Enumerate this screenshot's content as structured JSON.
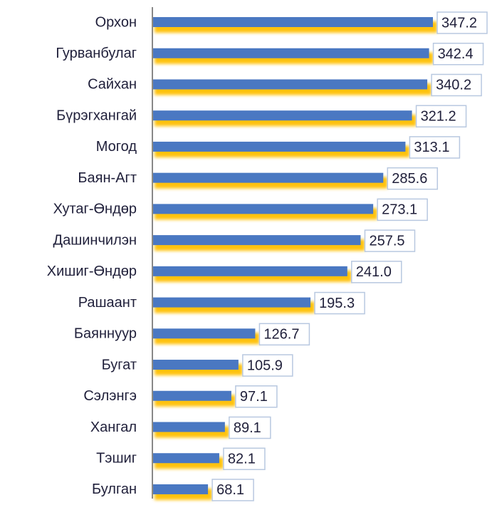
{
  "chart_data": {
    "type": "bar",
    "orientation": "horizontal",
    "categories": [
      "Орхон",
      "Гурванбулаг",
      "Сайхан",
      "Бүрэгхангай",
      "Могод",
      "Баян-Агт",
      "Хутаг-Өндөр",
      "Дашинчилэн",
      "Хишиг-Өндөр",
      "Рашаант",
      "Баяннуур",
      "Бугат",
      "Сэлэнгэ",
      "Хангал",
      "Тэшиг",
      "Булган"
    ],
    "values": [
      347.2,
      342.4,
      340.2,
      321.2,
      313.1,
      285.6,
      273.1,
      257.5,
      241.0,
      195.3,
      126.7,
      105.9,
      97.1,
      89.1,
      82.1,
      68.1
    ],
    "value_labels": [
      "347.2",
      "342.4",
      "340.2",
      "321.2",
      "313.1",
      "285.6",
      "273.1",
      "257.5",
      "241.0",
      "195.3",
      "126.7",
      "105.9",
      "97.1",
      "89.1",
      "82.1",
      "68.1"
    ],
    "color": "#4a78c2",
    "shadow_color": "#ffc20e"
  }
}
